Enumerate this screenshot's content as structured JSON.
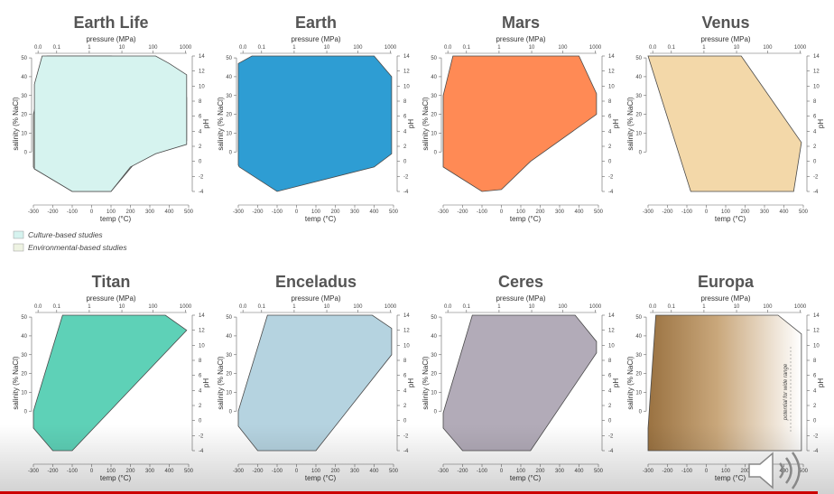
{
  "panels": [
    {
      "id": "earth-life",
      "title": "Earth Life",
      "fill": "#d6f3ef",
      "polygons": [
        {
          "fill": "#eef3e2",
          "points": [
            [
              -300,
              20
            ],
            [
              -230,
              51
            ],
            [
              100,
              51
            ],
            [
              260,
              47
            ],
            [
              400,
              39
            ],
            [
              490,
              29
            ],
            [
              490,
              6
            ],
            [
              400,
              2
            ],
            [
              230,
              -5
            ],
            [
              100,
              -21
            ],
            [
              -100,
              -21
            ],
            [
              -295,
              -9
            ],
            [
              -300,
              -8
            ]
          ]
        },
        {
          "fill": "#d6f3ef",
          "points": [
            [
              -295,
              36
            ],
            [
              -255,
              51
            ],
            [
              100,
              51
            ],
            [
              210,
              51
            ],
            [
              330,
              51
            ],
            [
              400,
              47
            ],
            [
              490,
              41
            ],
            [
              490,
              4
            ],
            [
              330,
              -1
            ],
            [
              200,
              -8
            ],
            [
              100,
              -21
            ],
            [
              -100,
              -21
            ],
            [
              -295,
              -9
            ]
          ]
        }
      ]
    },
    {
      "id": "earth",
      "title": "Earth",
      "fill": "#2e9dd3",
      "polygons": [
        {
          "fill": "#2e9dd3",
          "points": [
            [
              -300,
              47
            ],
            [
              -230,
              51
            ],
            [
              400,
              51
            ],
            [
              490,
              40
            ],
            [
              490,
              -1
            ],
            [
              400,
              -8
            ],
            [
              -100,
              -21
            ],
            [
              -295,
              -8
            ],
            [
              -300,
              -7
            ]
          ]
        }
      ]
    },
    {
      "id": "mars",
      "title": "Mars",
      "fill": "#ff8a55",
      "polygons": [
        {
          "fill": "#ff8a55",
          "points": [
            [
              -300,
              30
            ],
            [
              -250,
              51
            ],
            [
              400,
              51
            ],
            [
              490,
              31
            ],
            [
              490,
              20
            ],
            [
              150,
              -5
            ],
            [
              0,
              -20
            ],
            [
              -100,
              -21
            ],
            [
              -300,
              -8
            ]
          ]
        }
      ]
    },
    {
      "id": "venus",
      "title": "Venus",
      "fill": "#f3d8a9",
      "polygons": [
        {
          "fill": "#f3d8a9",
          "points": [
            [
              -300,
              51
            ],
            [
              180,
              51
            ],
            [
              490,
              5
            ],
            [
              450,
              -21
            ],
            [
              -80,
              -21
            ]
          ]
        }
      ]
    },
    {
      "id": "titan",
      "title": "Titan",
      "fill": "#5ed1b7",
      "polygons": [
        {
          "fill": "#5ed1b7",
          "points": [
            [
              -150,
              51
            ],
            [
              380,
              51
            ],
            [
              490,
              43
            ],
            [
              -100,
              -21
            ],
            [
              -200,
              -21
            ],
            [
              -300,
              -9
            ],
            [
              -300,
              0
            ]
          ]
        }
      ]
    },
    {
      "id": "enceladus",
      "title": "Enceladus",
      "fill": "#b5d3e0",
      "polygons": [
        {
          "fill": "#b5d3e0",
          "points": [
            [
              -150,
              51
            ],
            [
              390,
              51
            ],
            [
              490,
              44
            ],
            [
              490,
              30
            ],
            [
              100,
              -21
            ],
            [
              -200,
              -21
            ],
            [
              -300,
              -8
            ],
            [
              -300,
              0
            ]
          ]
        }
      ]
    },
    {
      "id": "ceres",
      "title": "Ceres",
      "fill": "#b2abb8",
      "polygons": [
        {
          "fill": "#b2abb8",
          "points": [
            [
              -150,
              51
            ],
            [
              380,
              51
            ],
            [
              490,
              37
            ],
            [
              490,
              31
            ],
            [
              150,
              -21
            ],
            [
              -200,
              -21
            ],
            [
              -300,
              -9
            ],
            [
              -300,
              -1
            ]
          ]
        }
      ]
    },
    {
      "id": "europa",
      "title": "Europa",
      "fill": "#b58d5b",
      "gradient": true,
      "annotation": "potential for wide range",
      "polygons": [
        {
          "fill": "url(#europa-grad)",
          "points": [
            [
              -260,
              51
            ],
            [
              370,
              51
            ],
            [
              490,
              41
            ],
            [
              490,
              -21
            ],
            [
              -300,
              -21
            ],
            [
              -300,
              -9
            ]
          ]
        }
      ]
    }
  ],
  "axes": {
    "pressure_label": "pressure (MPa)",
    "pressure_ticks": [
      "0.0",
      "0.1",
      "1",
      "10",
      "100",
      "1000"
    ],
    "temp_label": "temp (°C)",
    "temp_ticks": [
      "-300",
      "-200",
      "-100",
      "0",
      "100",
      "200",
      "300",
      "400",
      "500"
    ],
    "salinity_label": "salinity (% NaCl)",
    "salinity_ticks": [
      "0",
      "10",
      "20",
      "30",
      "40",
      "50"
    ],
    "ph_label": "pH",
    "ph_ticks": [
      "-4",
      "-2",
      "0",
      "2",
      "4",
      "6",
      "8",
      "10",
      "12",
      "14"
    ]
  },
  "legend": {
    "items": [
      {
        "label": "Culture-based studies",
        "color": "#d6f3ef"
      },
      {
        "label": "Environmental-based studies",
        "color": "#eef3e2"
      }
    ]
  },
  "player": {
    "progress": 0.98,
    "volume_icon": "volume-icon"
  }
}
